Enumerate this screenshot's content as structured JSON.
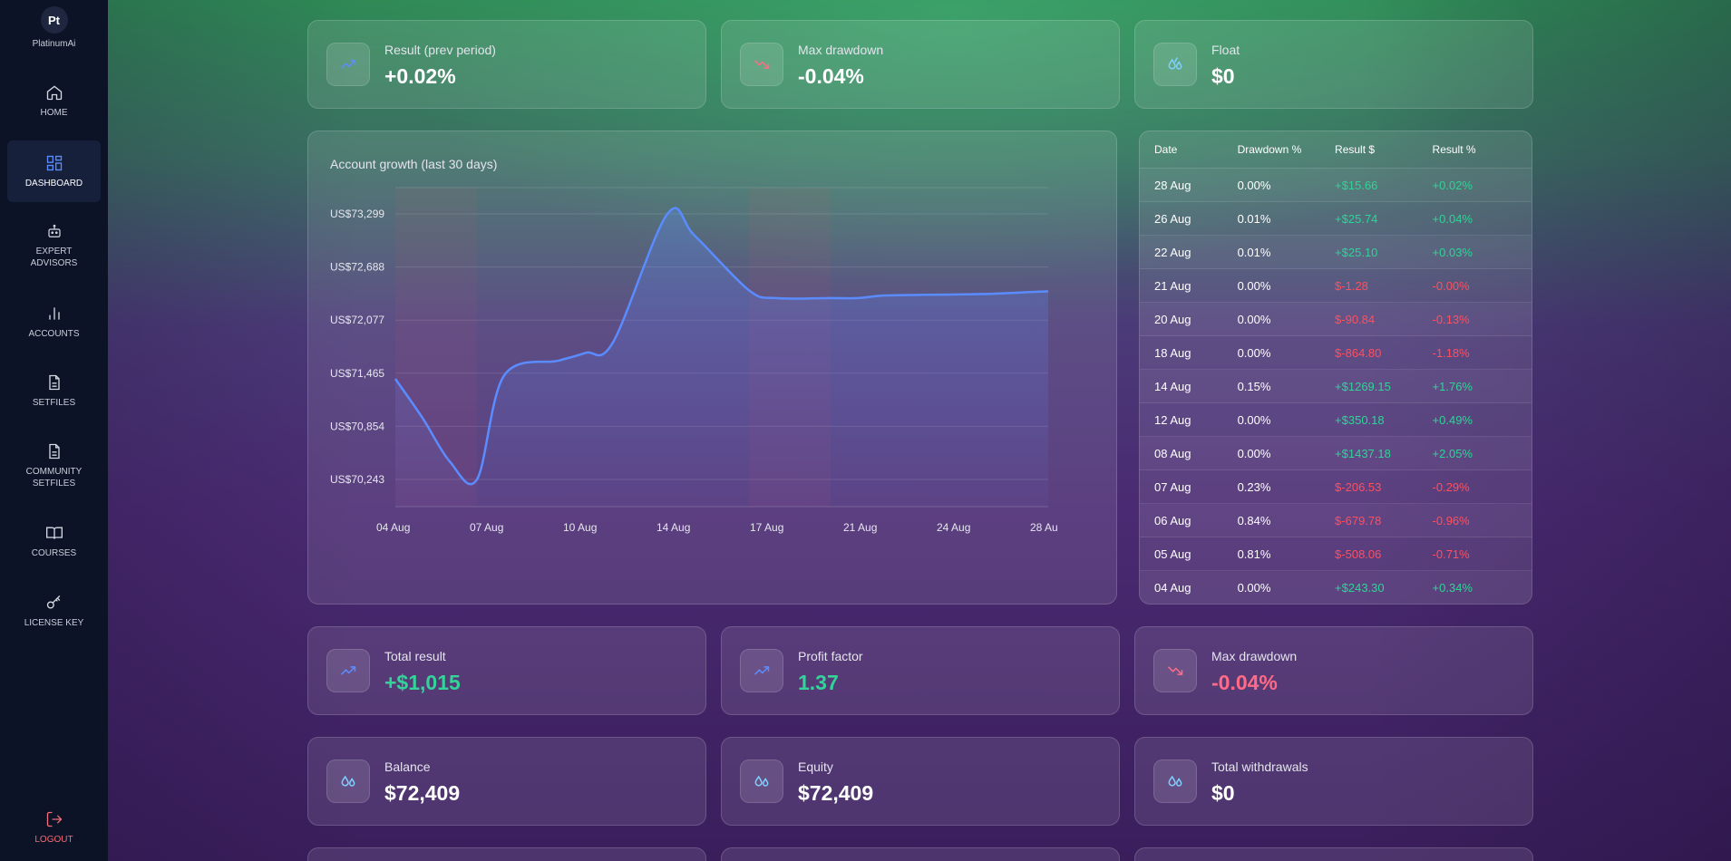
{
  "sidebar": {
    "logo_initials": "Pt",
    "logo_name": "PlatinumAi",
    "items": [
      {
        "label": "HOME",
        "icon": "home-icon"
      },
      {
        "label": "DASHBOARD",
        "icon": "dashboard-icon",
        "active": true
      },
      {
        "label": "EXPERT ADVISORS",
        "icon": "robot-icon"
      },
      {
        "label": "ACCOUNTS",
        "icon": "bar-chart-icon"
      },
      {
        "label": "SETFILES",
        "icon": "file-icon"
      },
      {
        "label": "COMMUNITY SETFILES",
        "icon": "file-icon"
      },
      {
        "label": "COURSES",
        "icon": "book-icon"
      },
      {
        "label": "LICENSE KEY",
        "icon": "key-icon"
      }
    ],
    "logout_label": "LOGOUT"
  },
  "top_stats": [
    {
      "label": "Result (prev period)",
      "value": "+0.02%",
      "icon": "trend-up-icon"
    },
    {
      "label": "Max drawdown",
      "value": "-0.04%",
      "icon": "trend-down-icon"
    },
    {
      "label": "Float",
      "value": "$0",
      "icon": "droplets-icon"
    }
  ],
  "chart": {
    "title": "Account growth (last 30 days)"
  },
  "chart_data": {
    "type": "area",
    "title": "Account growth (last 30 days)",
    "x_ticks": [
      "04 Aug",
      "07 Aug",
      "10 Aug",
      "14 Aug",
      "17 Aug",
      "21 Aug",
      "24 Aug",
      "28 Au"
    ],
    "y_ticks": [
      "US$73,299",
      "US$72,688",
      "US$72,077",
      "US$71,465",
      "US$70,854",
      "US$70,243"
    ],
    "ylim": [
      70243,
      73299
    ],
    "x_days": [
      4,
      5,
      6,
      7,
      8,
      10,
      11,
      12,
      14,
      15,
      17,
      18,
      20,
      21,
      22,
      24,
      26,
      28
    ],
    "series": [
      {
        "values": [
          71400,
          70950,
          70450,
          70243,
          71440,
          71610,
          71700,
          71820,
          73299,
          73050,
          72420,
          72330,
          72330,
          72330,
          72360,
          72370,
          72380,
          72409
        ]
      }
    ],
    "grid": true
  },
  "table": {
    "headers": [
      "Date",
      "Drawdown %",
      "Result $",
      "Result %"
    ],
    "rows": [
      {
        "date": "28 Aug",
        "dd": "0.00%",
        "res": "+$15.66",
        "pct": "+0.02%",
        "positive": true
      },
      {
        "date": "26 Aug",
        "dd": "0.01%",
        "res": "+$25.74",
        "pct": "+0.04%",
        "positive": true
      },
      {
        "date": "22 Aug",
        "dd": "0.01%",
        "res": "+$25.10",
        "pct": "+0.03%",
        "positive": true
      },
      {
        "date": "21 Aug",
        "dd": "0.00%",
        "res": "$-1.28",
        "pct": "-0.00%",
        "positive": false
      },
      {
        "date": "20 Aug",
        "dd": "0.00%",
        "res": "$-90.84",
        "pct": "-0.13%",
        "positive": false
      },
      {
        "date": "18 Aug",
        "dd": "0.00%",
        "res": "$-864.80",
        "pct": "-1.18%",
        "positive": false
      },
      {
        "date": "14 Aug",
        "dd": "0.15%",
        "res": "+$1269.15",
        "pct": "+1.76%",
        "positive": true
      },
      {
        "date": "12 Aug",
        "dd": "0.00%",
        "res": "+$350.18",
        "pct": "+0.49%",
        "positive": true
      },
      {
        "date": "08 Aug",
        "dd": "0.00%",
        "res": "+$1437.18",
        "pct": "+2.05%",
        "positive": true
      },
      {
        "date": "07 Aug",
        "dd": "0.23%",
        "res": "$-206.53",
        "pct": "-0.29%",
        "positive": false
      },
      {
        "date": "06 Aug",
        "dd": "0.84%",
        "res": "$-679.78",
        "pct": "-0.96%",
        "positive": false
      },
      {
        "date": "05 Aug",
        "dd": "0.81%",
        "res": "$-508.06",
        "pct": "-0.71%",
        "positive": false
      },
      {
        "date": "04 Aug",
        "dd": "0.00%",
        "res": "+$243.30",
        "pct": "+0.34%",
        "positive": true
      }
    ]
  },
  "middle_stats": [
    {
      "label": "Total result",
      "value": "+$1,015",
      "icon": "trend-up-icon",
      "tone": "green"
    },
    {
      "label": "Profit factor",
      "value": "1.37",
      "icon": "trend-up-icon",
      "tone": "green"
    },
    {
      "label": "Max drawdown",
      "value": "-0.04%",
      "icon": "trend-down-icon",
      "tone": "red"
    }
  ],
  "bottom_stats": [
    {
      "label": "Balance",
      "value": "$72,409",
      "icon": "droplets-icon"
    },
    {
      "label": "Equity",
      "value": "$72,409",
      "icon": "droplets-icon"
    },
    {
      "label": "Total withdrawals",
      "value": "$0",
      "icon": "droplets-icon"
    }
  ],
  "colors": {
    "accent": "#5b8cff",
    "positive": "#2fd397",
    "negative": "#ff4f5e",
    "sidebar": "#0d1326"
  }
}
